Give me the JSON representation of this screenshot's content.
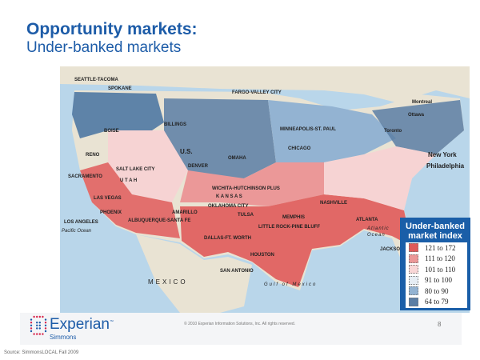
{
  "title": "Opportunity markets:",
  "subtitle": "Under-banked markets",
  "map": {
    "labels": [
      "SPOKANE",
      "SEATTLE-TACOMA",
      "BILLINGS",
      "FARGO-VALLEY CITY",
      "MINNEAPOLIS-ST. PAUL",
      "BOISE",
      "SALT LAKE CITY",
      "DENVER",
      "RENO",
      "SACRAMENTO",
      "LAS VEGAS",
      "LOS ANGELES",
      "PHOENIX",
      "ALBUQUERQUE-SANTA FE",
      "AMARILLO",
      "OKLAHOMA CITY",
      "TULSA",
      "DALLAS-FT. WORTH",
      "HOUSTON",
      "SAN ANTONIO",
      "WICHITA-HUTCHINSON PLUS",
      "OMAHA",
      "CHICAGO",
      "MEMPHIS",
      "LITTLE ROCK-PINE BLUFF",
      "ATLANTA",
      "NASHVILLE",
      "JACKSONVILLE",
      "New York",
      "Philadelphia",
      "Toronto",
      "Montreal",
      "Ottawa",
      "MEXICO",
      "Gulf of Mexico",
      "Atlantic Ocean",
      "Pacific Ocean",
      "U.S.",
      "K A N S A S",
      "U T A H"
    ],
    "colors": {
      "water": "#b9d6ea",
      "land": "#e9e3d3",
      "high": "#e05a5a",
      "mid_high": "#eb9898",
      "mid": "#f6d3d3",
      "neutral": "#e4ebf2",
      "low": "#93b3d2",
      "lowest": "#4f78a3"
    }
  },
  "legend": {
    "title": "Under-banked market index",
    "items": [
      {
        "label": "121 to 172",
        "color": "#e05a5a"
      },
      {
        "label": "111 to 120",
        "color": "#eb9898"
      },
      {
        "label": "101 to 110",
        "color": "#f8d6d6"
      },
      {
        "label": "91 to 100",
        "color": "#e6edf4"
      },
      {
        "label": "80 to 90",
        "color": "#93b3d2"
      },
      {
        "label": "64 to 79",
        "color": "#5b7ea5"
      }
    ]
  },
  "footer": {
    "logo": "Experian",
    "logo_tm": "™",
    "logo_sub": "Simmons",
    "copyright": "© 2010 Experian Information Solutions, Inc.  All rights reserved.",
    "page": "8"
  },
  "source": "Source:  SimmonsLOCAL Fall 2009"
}
